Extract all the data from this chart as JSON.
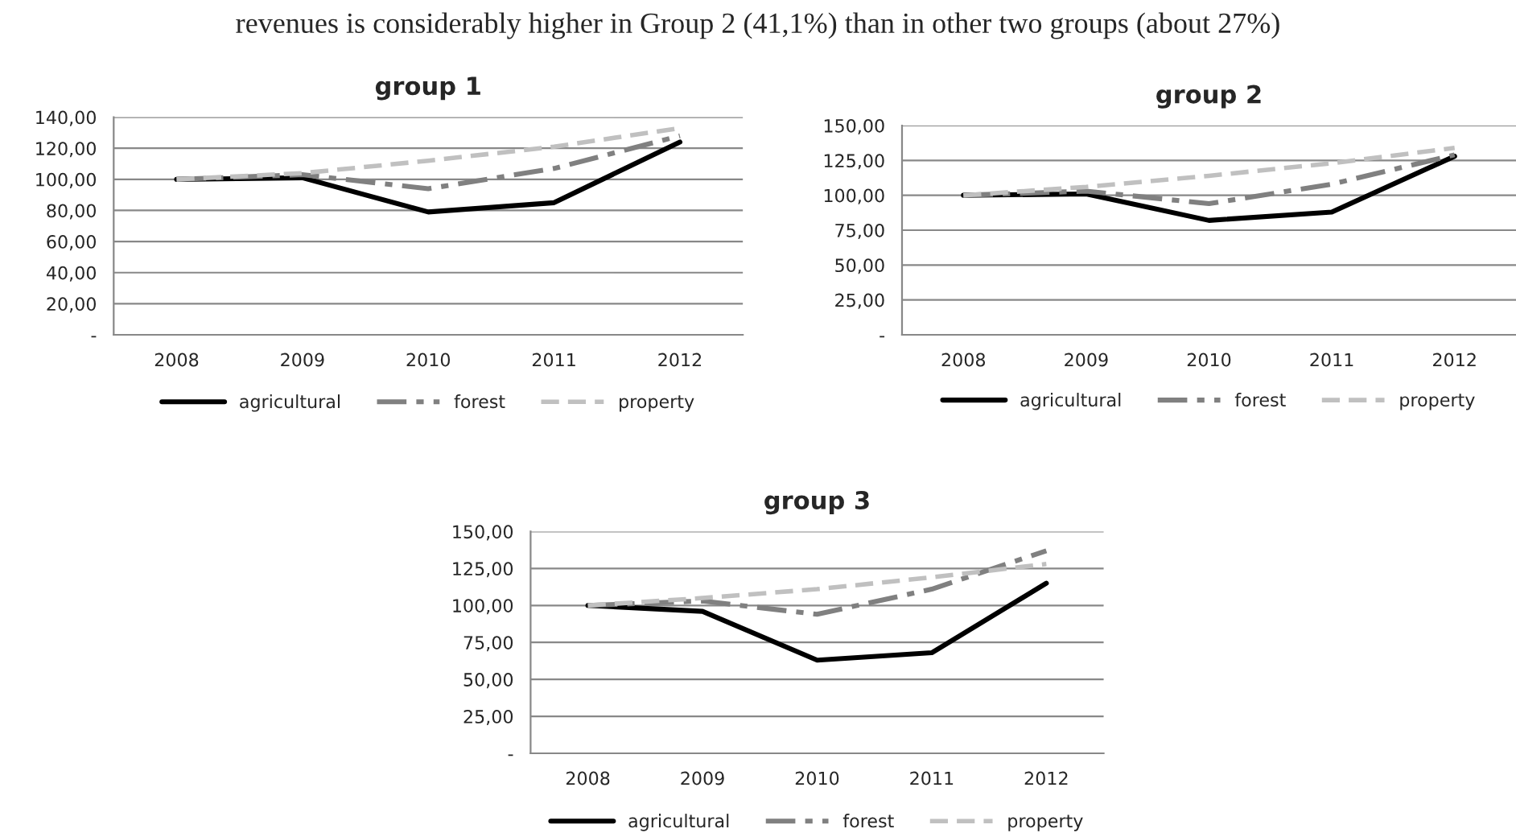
{
  "chart_data": [
    {
      "type": "line",
      "title": "group 1",
      "annotations": [
        "revenues is considerably higher in Group 2 (41,1%) than in other two groups (about 27%)"
      ],
      "categories": [
        "2008",
        "2009",
        "2010",
        "2011",
        "2012"
      ],
      "series": [
        {
          "name": "agricultural",
          "color": "#000000",
          "line_style": "solid",
          "values": [
            100,
            101,
            79,
            85,
            124
          ]
        },
        {
          "name": "forest",
          "color": "#808080",
          "line_style": "dashdot",
          "values": [
            100,
            103,
            94,
            107,
            128
          ]
        },
        {
          "name": "property",
          "color": "#c0c0c0",
          "line_style": "dashed",
          "values": [
            100,
            104,
            112,
            121,
            133
          ]
        }
      ],
      "ylim": [
        0,
        140
      ],
      "yticks": [
        {
          "value": 0,
          "label": "-"
        },
        {
          "value": 20,
          "label": "20,00"
        },
        {
          "value": 40,
          "label": "40,00"
        },
        {
          "value": 60,
          "label": "60,00"
        },
        {
          "value": 80,
          "label": "80,00"
        },
        {
          "value": 100,
          "label": "100,00"
        },
        {
          "value": 120,
          "label": "120,00"
        },
        {
          "value": 140,
          "label": "140,00"
        }
      ],
      "grid": "y",
      "legend": "bottom",
      "marker": "none"
    },
    {
      "type": "line",
      "title": "group 2",
      "categories": [
        "2008",
        "2009",
        "2010",
        "2011",
        "2012"
      ],
      "series": [
        {
          "name": "agricultural",
          "color": "#000000",
          "line_style": "solid",
          "values": [
            100,
            101,
            82,
            88,
            128
          ]
        },
        {
          "name": "forest",
          "color": "#808080",
          "line_style": "dashdot",
          "values": [
            100,
            103,
            94,
            108,
            129
          ]
        },
        {
          "name": "property",
          "color": "#c0c0c0",
          "line_style": "dashed",
          "values": [
            100,
            106,
            114,
            123,
            134
          ]
        }
      ],
      "ylim": [
        0,
        150
      ],
      "yticks": [
        {
          "value": 0,
          "label": "-"
        },
        {
          "value": 25,
          "label": "25,00"
        },
        {
          "value": 50,
          "label": "50,00"
        },
        {
          "value": 75,
          "label": "75,00"
        },
        {
          "value": 100,
          "label": "100,00"
        },
        {
          "value": 125,
          "label": "125,00"
        },
        {
          "value": 150,
          "label": "150,00"
        }
      ],
      "grid": "y",
      "legend": "bottom",
      "marker": "none"
    },
    {
      "type": "line",
      "title": "group 3",
      "categories": [
        "2008",
        "2009",
        "2010",
        "2011",
        "2012"
      ],
      "series": [
        {
          "name": "agricultural",
          "color": "#000000",
          "line_style": "solid",
          "values": [
            100,
            96,
            63,
            68,
            115
          ]
        },
        {
          "name": "forest",
          "color": "#808080",
          "line_style": "dashdot",
          "values": [
            100,
            103,
            94,
            111,
            137
          ]
        },
        {
          "name": "property",
          "color": "#c0c0c0",
          "line_style": "dashed",
          "values": [
            100,
            105,
            111,
            119,
            128
          ]
        }
      ],
      "ylim": [
        0,
        150
      ],
      "yticks": [
        {
          "value": 0,
          "label": "-"
        },
        {
          "value": 25,
          "label": "25,00"
        },
        {
          "value": 50,
          "label": "50,00"
        },
        {
          "value": 75,
          "label": "75,00"
        },
        {
          "value": 100,
          "label": "100,00"
        },
        {
          "value": 125,
          "label": "125,00"
        },
        {
          "value": 150,
          "label": "150,00"
        }
      ],
      "grid": "y",
      "legend": "bottom",
      "marker": "none"
    }
  ]
}
